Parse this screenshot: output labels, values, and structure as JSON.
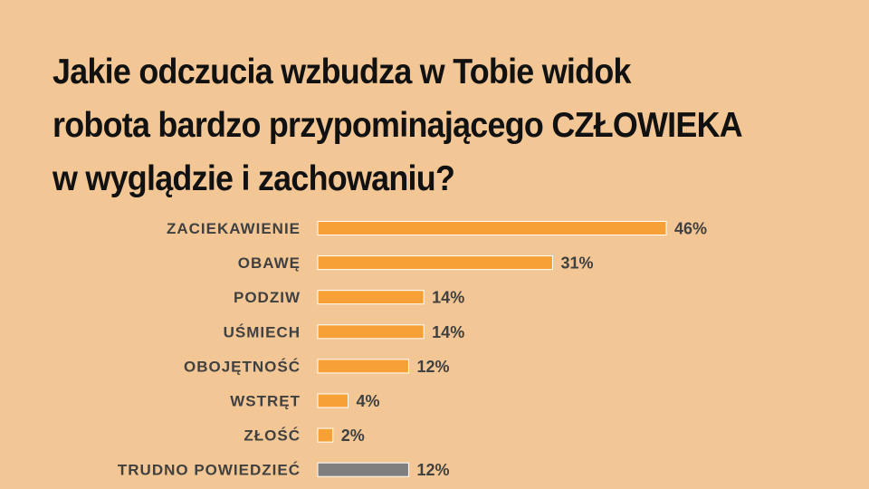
{
  "chart_data": {
    "type": "bar",
    "orientation": "horizontal",
    "title_lines": [
      "Jakie odczucia wzbudza w Tobie widok",
      "robota bardzo przypominającego CZŁOWIEKA",
      "w wyglądzie i zachowaniu?"
    ],
    "categories": [
      "ZACIEKAWIENIE",
      "OBAWĘ",
      "PODZIW",
      "UŚMIECH",
      "OBOJĘTNOŚĆ",
      "WSTRĘT",
      "ZŁOŚĆ",
      "TRUDNO POWIEDZIEĆ"
    ],
    "values": [
      46,
      31,
      14,
      14,
      12,
      4,
      2,
      12
    ],
    "value_labels": [
      "46%",
      "31%",
      "14%",
      "14%",
      "12%",
      "4%",
      "2%",
      "12%"
    ],
    "unit": "%",
    "colors": [
      "#f7a035",
      "#f7a035",
      "#f7a035",
      "#f7a035",
      "#f7a035",
      "#f7a035",
      "#f7a035",
      "#7f7f7f"
    ],
    "bar_border": "#ffffff",
    "grid": false,
    "legend": "none"
  }
}
